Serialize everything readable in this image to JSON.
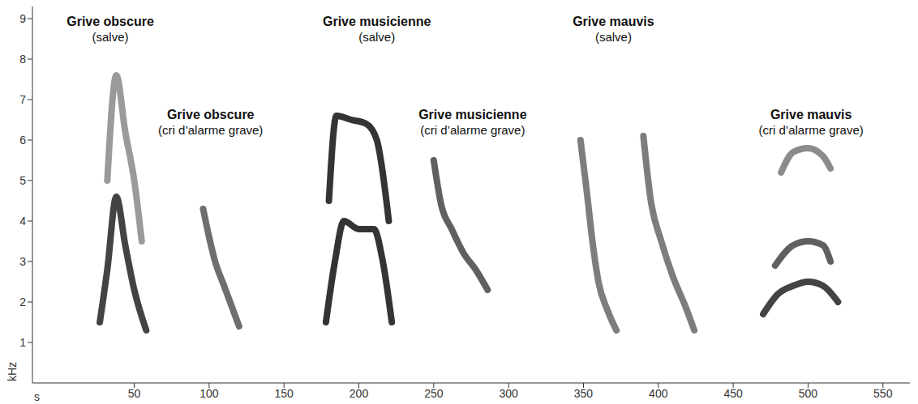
{
  "chart_data": {
    "type": "line",
    "x_label": "s",
    "y_label": "kHz",
    "xlim": [
      -18,
      568
    ],
    "xticks": [
      50,
      100,
      150,
      200,
      250,
      300,
      350,
      400,
      450,
      500,
      550
    ],
    "ylim": [
      0,
      9.3
    ],
    "yticks": [
      1,
      2,
      3,
      4,
      5,
      6,
      7,
      8,
      9
    ],
    "grid": false,
    "series": [
      {
        "color": "#222222",
        "x": [
          27,
          32,
          38,
          44,
          50,
          58
        ],
        "values": [
          1.5,
          2.8,
          4.6,
          3.4,
          2.3,
          1.3
        ]
      },
      {
        "color": "#888888",
        "x": [
          32,
          38,
          44,
          50,
          55
        ],
        "values": [
          5.0,
          7.6,
          6.2,
          5.0,
          3.5
        ]
      },
      {
        "color": "#555555",
        "x": [
          96,
          100,
          104,
          110,
          115,
          120
        ],
        "values": [
          4.3,
          3.6,
          3.0,
          2.4,
          1.9,
          1.4
        ]
      },
      {
        "color": "#111111",
        "x": [
          178,
          184,
          190,
          200,
          210,
          216,
          222
        ],
        "values": [
          1.5,
          3.0,
          4.0,
          3.8,
          3.8,
          3.0,
          1.5
        ]
      },
      {
        "color": "#111111",
        "x": [
          180,
          185,
          195,
          205,
          212,
          220
        ],
        "values": [
          4.5,
          6.6,
          6.5,
          6.4,
          6.0,
          4.0
        ]
      },
      {
        "color": "#444444",
        "x": [
          250,
          255,
          262,
          270,
          278,
          286
        ],
        "values": [
          5.5,
          4.4,
          3.8,
          3.2,
          2.8,
          2.3
        ]
      },
      {
        "color": "#666666",
        "x": [
          348,
          352,
          356,
          360,
          366,
          372
        ],
        "values": [
          6.0,
          4.8,
          3.5,
          2.5,
          1.8,
          1.3
        ]
      },
      {
        "color": "#666666",
        "x": [
          390,
          395,
          402,
          410,
          418,
          424
        ],
        "values": [
          6.1,
          4.5,
          3.5,
          2.6,
          1.9,
          1.3
        ]
      },
      {
        "color": "#222222",
        "x": [
          470,
          480,
          490,
          500,
          510,
          520
        ],
        "values": [
          1.7,
          2.2,
          2.4,
          2.5,
          2.4,
          2.0
        ]
      },
      {
        "color": "#444444",
        "x": [
          478,
          490,
          500,
          510,
          515
        ],
        "values": [
          2.9,
          3.4,
          3.5,
          3.4,
          3.0
        ]
      },
      {
        "color": "#777777",
        "x": [
          482,
          490,
          500,
          510,
          515
        ],
        "values": [
          5.2,
          5.7,
          5.8,
          5.6,
          5.3
        ]
      }
    ],
    "annotations": [
      {
        "text": "Grive obscure",
        "subtext": "(salve)",
        "x": 34,
        "y": 9.1
      },
      {
        "text": "Grive obscure",
        "subtext": "(cri d’alarme grave)",
        "x": 101,
        "y": 6.8
      },
      {
        "text": "Grive musicienne",
        "subtext": "(salve)",
        "x": 212,
        "y": 9.1
      },
      {
        "text": "Grive musicienne",
        "subtext": "(cri d’alarme grave)",
        "x": 276,
        "y": 6.8
      },
      {
        "text": "Grive mauvis",
        "subtext": "(salve)",
        "x": 370,
        "y": 9.1
      },
      {
        "text": "Grive mauvis",
        "subtext": "(cri d’alarme grave)",
        "x": 502,
        "y": 6.8
      }
    ]
  }
}
